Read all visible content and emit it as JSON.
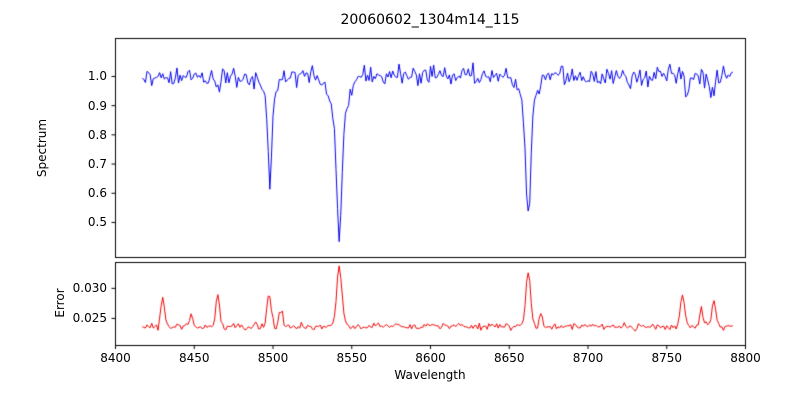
{
  "chart_data": {
    "type": "line",
    "title": "20060602_1304m14_115",
    "xlabel": "Wavelength",
    "xlim": [
      8400,
      8800
    ],
    "x_data_range": [
      8417,
      8792
    ],
    "x_step": 1.0,
    "noise_seed": 20060602,
    "grid": false,
    "legend": "none",
    "xticks": {
      "values": [
        8400,
        8450,
        8500,
        8550,
        8600,
        8650,
        8700,
        8750,
        8800
      ],
      "labels": [
        "8400",
        "8450",
        "8500",
        "8550",
        "8600",
        "8650",
        "8700",
        "8750",
        "8800"
      ]
    },
    "panels": [
      {
        "name": "spectrum",
        "ylabel": "Spectrum",
        "line_color": "#0000ee",
        "ylim": [
          0.38,
          1.13
        ],
        "yticks": {
          "values": [
            0.5,
            0.6,
            0.7,
            0.8,
            0.9,
            1.0
          ],
          "labels": [
            "0.5",
            "0.6",
            "0.7",
            "0.8",
            "0.9",
            "1.0"
          ]
        },
        "baseline": 1.0,
        "noise_sigma": 0.017,
        "absorption_lines": [
          {
            "center": 8498.0,
            "core_depth": 0.29,
            "core_width": 1.3,
            "wing_depth": 0.07,
            "wing_width": 4.0
          },
          {
            "center": 8542.1,
            "core_depth": 0.42,
            "core_width": 1.6,
            "wing_depth": 0.13,
            "wing_width": 5.5
          },
          {
            "center": 8662.1,
            "core_depth": 0.37,
            "core_width": 1.5,
            "wing_depth": 0.11,
            "wing_width": 4.5
          },
          {
            "center": 8430.0,
            "core_depth": 0.03,
            "core_width": 1.0,
            "wing_depth": 0.0,
            "wing_width": 1.0
          },
          {
            "center": 8465.0,
            "core_depth": 0.05,
            "core_width": 1.2,
            "wing_depth": 0.0,
            "wing_width": 1.0
          },
          {
            "center": 8763.0,
            "core_depth": 0.07,
            "core_width": 1.2,
            "wing_depth": 0.0,
            "wing_width": 1.0
          },
          {
            "center": 8778.0,
            "core_depth": 0.06,
            "core_width": 1.2,
            "wing_depth": 0.0,
            "wing_width": 1.0
          }
        ]
      },
      {
        "name": "error",
        "ylabel": "Error",
        "line_color": "#ee0000",
        "ylim": [
          0.0205,
          0.0343
        ],
        "yticks": {
          "values": [
            0.025,
            0.03
          ],
          "labels": [
            "0.025",
            "0.030"
          ]
        },
        "baseline": 0.0237,
        "noise_sigma": 0.00028,
        "peaks": [
          {
            "center": 8430.0,
            "height": 0.0048,
            "width": 1.2
          },
          {
            "center": 8448.0,
            "height": 0.0018,
            "width": 1.0
          },
          {
            "center": 8465.0,
            "height": 0.0052,
            "width": 1.2
          },
          {
            "center": 8497.5,
            "height": 0.0055,
            "width": 1.3
          },
          {
            "center": 8505.0,
            "height": 0.0028,
            "width": 1.0
          },
          {
            "center": 8542.1,
            "height": 0.01,
            "width": 1.6
          },
          {
            "center": 8662.1,
            "height": 0.009,
            "width": 1.5
          },
          {
            "center": 8670.0,
            "height": 0.002,
            "width": 1.0
          },
          {
            "center": 8760.0,
            "height": 0.0052,
            "width": 1.3
          },
          {
            "center": 8772.0,
            "height": 0.0028,
            "width": 1.0
          },
          {
            "center": 8780.0,
            "height": 0.0048,
            "width": 1.2
          }
        ]
      }
    ]
  }
}
